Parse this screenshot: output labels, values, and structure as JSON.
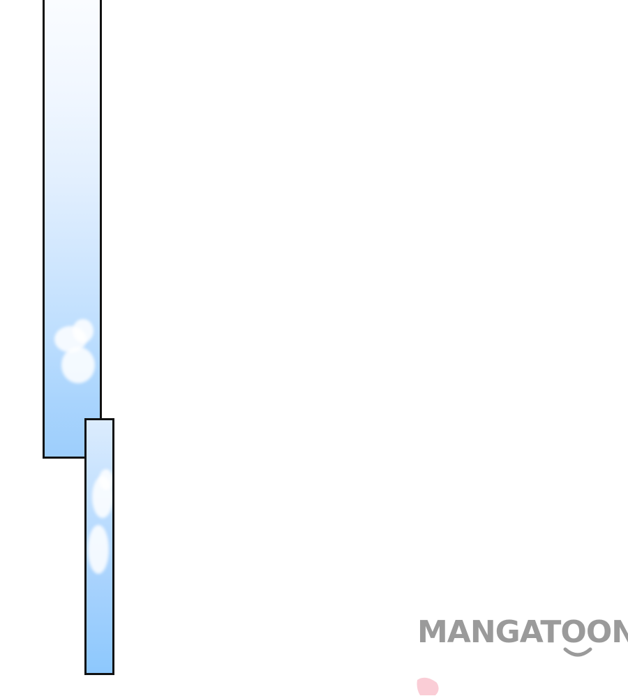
{
  "watermark": {
    "text": "MANGATOON",
    "color": "#9a9a9a"
  },
  "colors": {
    "panel_border": "#111111",
    "sky_light": "#fafcff",
    "sky_deep": "#8dc8fd",
    "petal": "#f9c4cf"
  }
}
